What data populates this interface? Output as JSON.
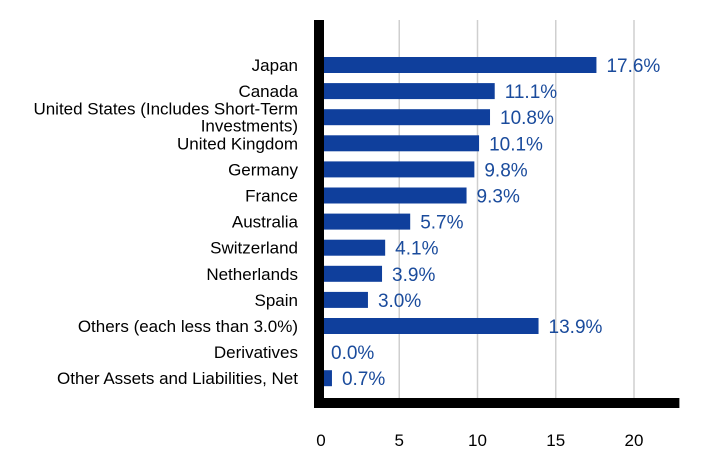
{
  "chart_data": {
    "type": "bar",
    "orientation": "horizontal",
    "title": "",
    "xlabel": "",
    "ylabel": "",
    "categories": [
      [
        "Japan"
      ],
      [
        "Canada"
      ],
      [
        "United States (Includes Short-Term",
        "Investments)"
      ],
      [
        "United Kingdom"
      ],
      [
        "Germany"
      ],
      [
        "France"
      ],
      [
        "Australia"
      ],
      [
        "Switzerland"
      ],
      [
        "Netherlands"
      ],
      [
        "Spain"
      ],
      [
        "Others (each less than 3.0%)"
      ],
      [
        "Derivatives"
      ],
      [
        "Other Assets and Liabilities, Net"
      ]
    ],
    "values": [
      17.6,
      11.1,
      10.8,
      10.1,
      9.8,
      9.3,
      5.7,
      4.1,
      3.9,
      3.0,
      13.9,
      0.0,
      0.7
    ],
    "value_labels": [
      "17.6%",
      "11.1%",
      "10.8%",
      "10.1%",
      "9.8%",
      "9.3%",
      "5.7%",
      "4.1%",
      "3.9%",
      "3.0%",
      "13.9%",
      "0.0%",
      "0.7%"
    ],
    "xticks": [
      0,
      5,
      10,
      15,
      20
    ],
    "xlim": [
      0,
      22.9
    ],
    "grid": "vertical",
    "legend": "none",
    "colors": {
      "bar": "#0f3f9c",
      "value_label": "#1a4b9c",
      "axis": "#000000",
      "grid": "#cfcfcf"
    }
  }
}
